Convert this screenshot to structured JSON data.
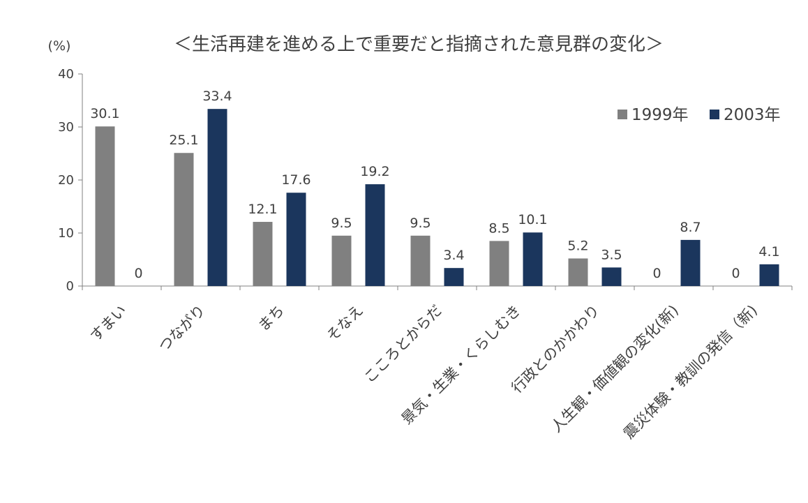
{
  "chart_data": {
    "type": "bar",
    "title": "＜生活再建を進める上で重要だと指摘された意見群の変化＞",
    "unit_label": "(%)",
    "categories": [
      "すまい",
      "つながり",
      "まち",
      "そなえ",
      "こころとからだ",
      "景気・生業・くらしむき",
      "行政とのかかわり",
      "人生観・価値観の変化(新)",
      "震災体験・教訓の発信（新)"
    ],
    "series": [
      {
        "name": "1999年",
        "color": "#808080",
        "values": [
          30.1,
          25.1,
          12.1,
          9.5,
          9.5,
          8.5,
          5.2,
          0,
          0
        ]
      },
      {
        "name": "2003年",
        "color": "#1b365d",
        "values": [
          0,
          33.4,
          17.6,
          19.2,
          3.4,
          10.1,
          3.5,
          8.7,
          4.1
        ]
      }
    ],
    "ylim": [
      0,
      40
    ],
    "yticks": [
      0,
      10,
      20,
      30,
      40
    ],
    "grid": false,
    "legend_position": "top-right",
    "data_labels": true
  }
}
